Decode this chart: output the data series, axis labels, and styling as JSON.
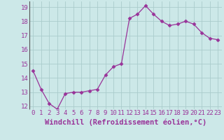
{
  "x": [
    0,
    1,
    2,
    3,
    4,
    5,
    6,
    7,
    8,
    9,
    10,
    11,
    12,
    13,
    14,
    15,
    16,
    17,
    18,
    19,
    20,
    21,
    22,
    23
  ],
  "y": [
    14.5,
    13.2,
    12.2,
    11.8,
    12.9,
    13.0,
    13.0,
    13.1,
    13.2,
    14.2,
    14.8,
    15.0,
    18.2,
    18.5,
    19.1,
    18.5,
    18.0,
    17.7,
    17.8,
    18.0,
    17.8,
    17.2,
    16.8,
    16.7
  ],
  "xlabel": "Windchill (Refroidissement éolien,°C)",
  "ylim_min": 11.8,
  "ylim_max": 19.4,
  "xlim_min": -0.5,
  "xlim_max": 23.5,
  "yticks": [
    12,
    13,
    14,
    15,
    16,
    17,
    18,
    19
  ],
  "xticks": [
    0,
    1,
    2,
    3,
    4,
    5,
    6,
    7,
    8,
    9,
    10,
    11,
    12,
    13,
    14,
    15,
    16,
    17,
    18,
    19,
    20,
    21,
    22,
    23
  ],
  "line_color": "#993399",
  "marker": "D",
  "marker_size": 2.5,
  "bg_color": "#cce8e8",
  "grid_color": "#aacccc",
  "xlabel_fontsize": 7.5,
  "tick_fontsize": 6.5,
  "axis_color": "#666666"
}
